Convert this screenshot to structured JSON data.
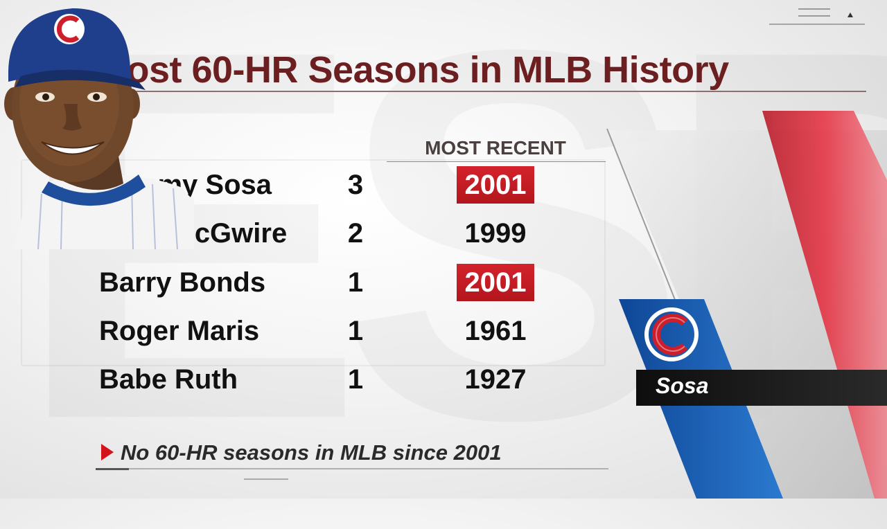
{
  "graphic": {
    "title": "Most 60-HR Seasons in MLB History",
    "column_header": "MOST RECENT",
    "rows": [
      {
        "player": "Sammy Sosa",
        "count": "3",
        "most_recent": "2001",
        "highlight": true
      },
      {
        "player": "Mark McGwire",
        "count": "2",
        "most_recent": "1999",
        "highlight": false
      },
      {
        "player": "Barry Bonds",
        "count": "1",
        "most_recent": "2001",
        "highlight": true
      },
      {
        "player": "Roger Maris",
        "count": "1",
        "most_recent": "1961",
        "highlight": false
      },
      {
        "player": "Babe Ruth",
        "count": "1",
        "most_recent": "1927",
        "highlight": false
      }
    ],
    "footnote": "No 60-HR seasons in MLB since 2001",
    "featured_player": {
      "name_label": "Sosa",
      "team_logo_icon": "cubs-c-logo-icon",
      "cap_logo_icon": "cubs-c-logo-icon"
    }
  },
  "colors": {
    "title": "#6b1f21",
    "highlight_bg": "#c81c24",
    "arrow": "#d4141c",
    "cubs_blue": "#1f5fae",
    "cubs_red": "#cc1f2b",
    "accent_red_stripe": "#e52b3c"
  }
}
